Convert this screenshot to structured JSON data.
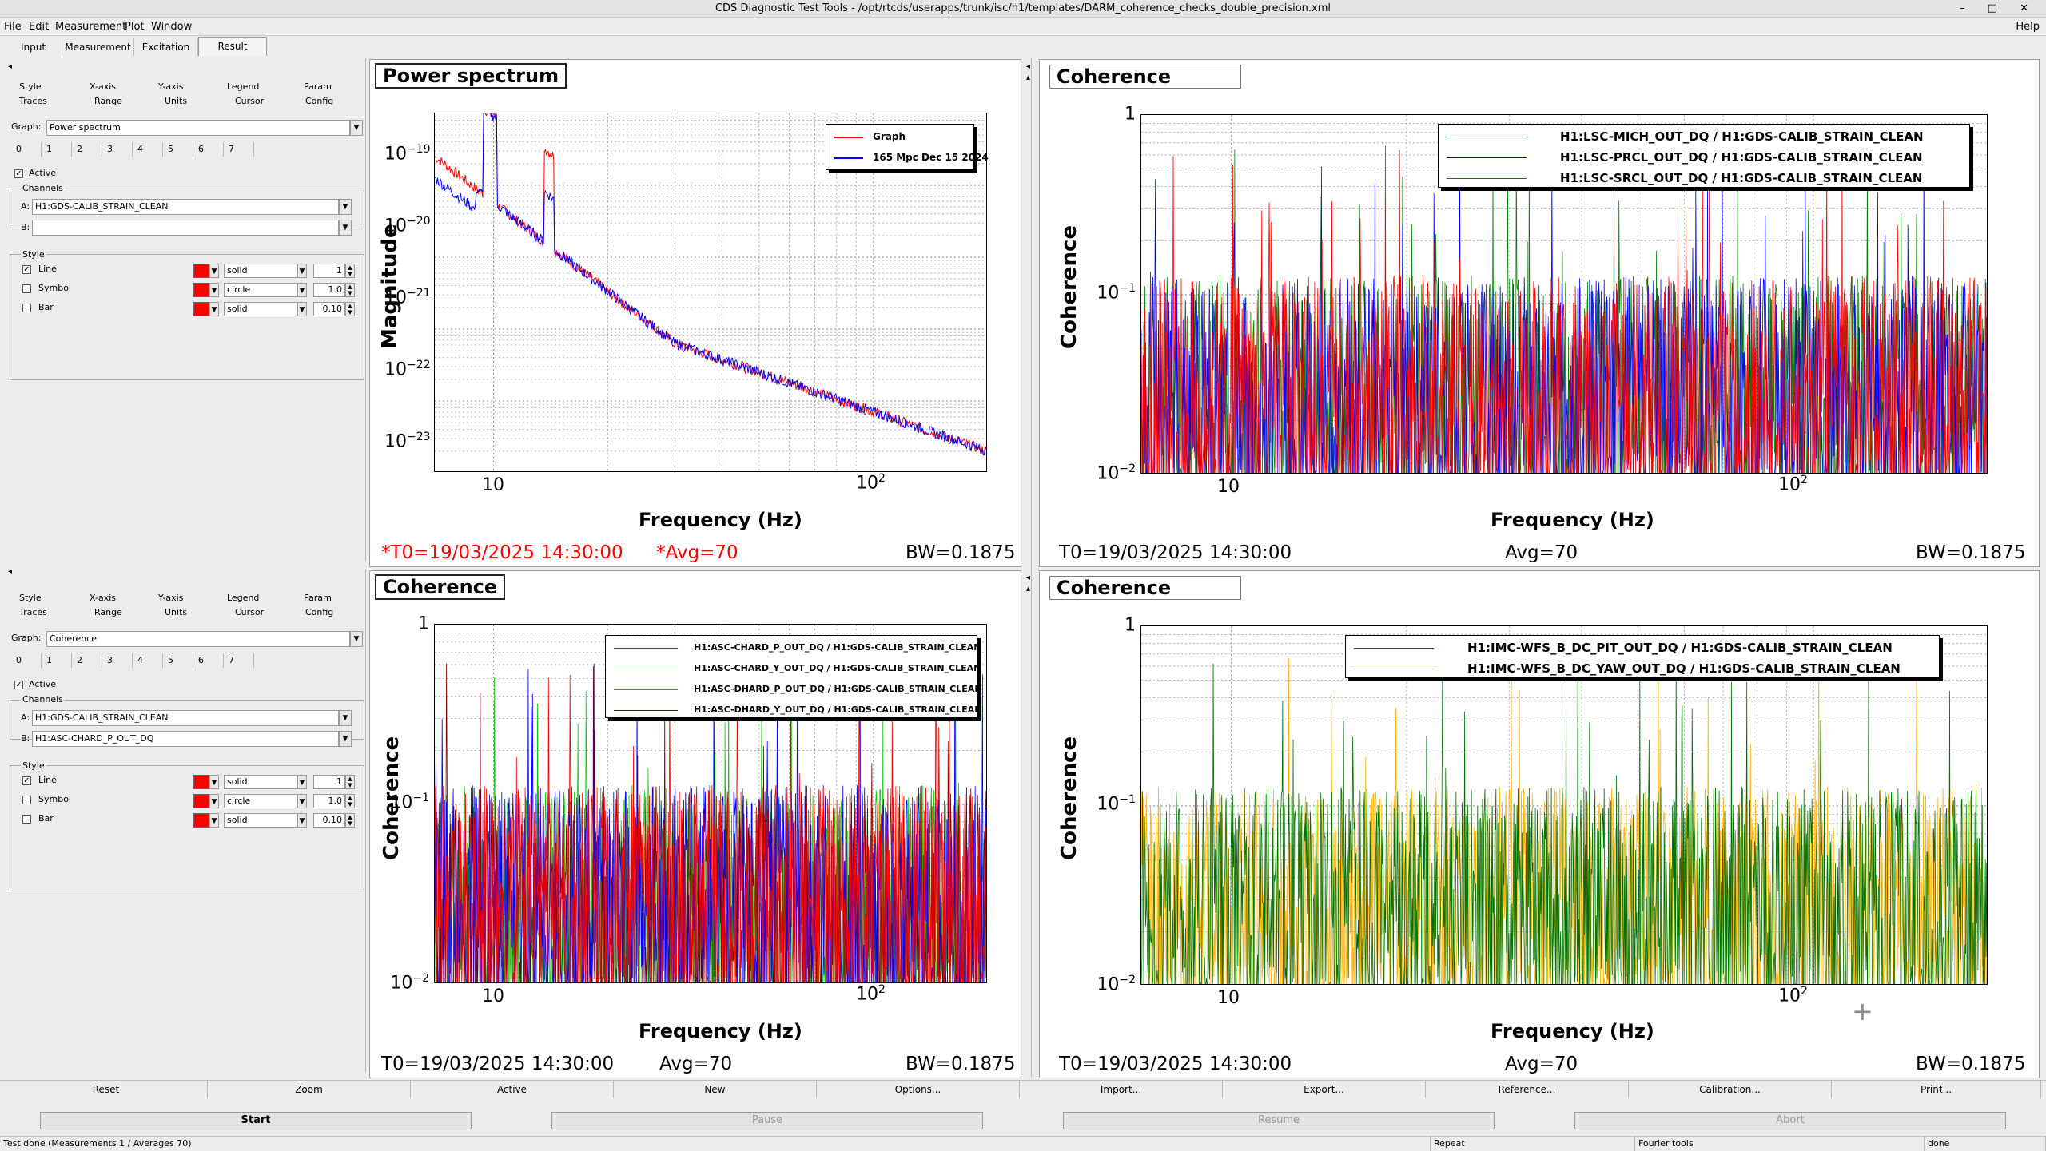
{
  "window": {
    "title": "CDS Diagnostic Test Tools - /opt/rtcds/userapps/trunk/isc/h1/templates/DARM_coherence_checks_double_precision.xml",
    "controls": "– □ ✕"
  },
  "menu": [
    "File",
    "Edit",
    "Measurement",
    "Plot",
    "Window"
  ],
  "help": "Help",
  "main_tabs": [
    "Input",
    "Measurement",
    "Excitation",
    "Result"
  ],
  "panel_tabs": {
    "row1": [
      "Style",
      "X-axis",
      "Y-axis",
      "Legend",
      "Param"
    ],
    "row2": [
      "Traces",
      "Range",
      "Units",
      "Cursor",
      "Config"
    ]
  },
  "trace_numbers": [
    "0",
    "1",
    "2",
    "3",
    "4",
    "5",
    "6",
    "7"
  ],
  "labels": {
    "graph": "Graph:",
    "active": "Active",
    "channels": "Channels",
    "a": "A:",
    "b": "B:",
    "style": "Style",
    "line": "Line",
    "symbol": "Symbol",
    "bar": "Bar"
  },
  "panels": [
    {
      "graph": "Power spectrum",
      "chan_a": "H1:GDS-CALIB_STRAIN_CLEAN",
      "chan_b": "",
      "line_style": "solid",
      "line_width": "1",
      "symbol": "circle",
      "symbol_size": "1.0",
      "bar": "solid",
      "bar_width": "0.10"
    },
    {
      "graph": "Coherence",
      "chan_a": "H1:GDS-CALIB_STRAIN_CLEAN",
      "chan_b": "H1:ASC-CHARD_P_OUT_DQ",
      "line_style": "solid",
      "line_width": "1",
      "symbol": "circle",
      "symbol_size": "1.0",
      "bar": "solid",
      "bar_width": "0.10"
    }
  ],
  "plots": [
    {
      "title": "Power spectrum",
      "ylabel": "Magnitude",
      "xlabel": "Frequency (Hz)",
      "t0": "*T0=19/03/2025 14:30:00",
      "avg": "*Avg=70",
      "bw": "BW=0.1875",
      "legend": [
        {
          "name": "Graph",
          "color": "#ff0000"
        },
        {
          "name": "165 Mpc Dec 15 2024",
          "color": "#0000ff"
        }
      ]
    },
    {
      "title": "Coherence",
      "ylabel": "Coherence",
      "xlabel": "Frequency (Hz)",
      "t0": "T0=19/03/2025 14:30:00",
      "avg": "Avg=70",
      "bw": "BW=0.1875",
      "legend": [
        {
          "name": "H1:LSC-MICH_OUT_DQ / H1:GDS-CALIB_STRAIN_CLEAN",
          "color": "#ff0000"
        },
        {
          "name": "H1:LSC-PRCL_OUT_DQ / H1:GDS-CALIB_STRAIN_CLEAN",
          "color": "#0000ff"
        },
        {
          "name": "H1:LSC-SRCL_OUT_DQ / H1:GDS-CALIB_STRAIN_CLEAN",
          "color": "#008000"
        }
      ]
    },
    {
      "title": "Coherence",
      "ylabel": "Coherence",
      "xlabel": "Frequency (Hz)",
      "t0": "T0=19/03/2025 14:30:00",
      "avg": "Avg=70",
      "bw": "BW=0.1875",
      "legend": [
        {
          "name": "H1:ASC-CHARD_P_OUT_DQ / H1:GDS-CALIB_STRAIN_CLEAN",
          "color": "#ff0000"
        },
        {
          "name": "H1:ASC-CHARD_Y_OUT_DQ / H1:GDS-CALIB_STRAIN_CLEAN",
          "color": "#0000ff"
        },
        {
          "name": "H1:ASC-DHARD_P_OUT_DQ / H1:GDS-CALIB_STRAIN_CLEAN",
          "color": "#00cc00"
        },
        {
          "name": "H1:ASC-DHARD_Y_OUT_DQ / H1:GDS-CALIB_STRAIN_CLEAN",
          "color": "#800000"
        }
      ]
    },
    {
      "title": "Coherence",
      "ylabel": "Coherence",
      "xlabel": "Frequency (Hz)",
      "t0": "T0=19/03/2025 14:30:00",
      "avg": "Avg=70",
      "bw": "BW=0.1875",
      "legend": [
        {
          "name": "H1:IMC-WFS_B_DC_PIT_OUT_DQ / H1:GDS-CALIB_STRAIN_CLEAN",
          "color": "#007000"
        },
        {
          "name": "H1:IMC-WFS_B_DC_YAW_OUT_DQ / H1:GDS-CALIB_STRAIN_CLEAN",
          "color": "#ffb000"
        }
      ]
    }
  ],
  "ticks": {
    "x10": "10",
    "x100": "10",
    "x100exp": "2",
    "ps_y": [
      {
        "b": "10",
        "e": "−19"
      },
      {
        "b": "10",
        "e": "−20"
      },
      {
        "b": "10",
        "e": "−21"
      },
      {
        "b": "10",
        "e": "−22"
      },
      {
        "b": "10",
        "e": "−23"
      }
    ],
    "coh_y": [
      {
        "b": "1",
        "e": ""
      },
      {
        "b": "10",
        "e": "−1"
      },
      {
        "b": "10",
        "e": "−2"
      }
    ]
  },
  "bottom_buttons": [
    "Reset",
    "Zoom",
    "Active",
    "New",
    "Options...",
    "Import...",
    "Export...",
    "Reference...",
    "Calibration...",
    "Print..."
  ],
  "run_buttons": [
    "Start",
    "Pause",
    "Resume",
    "Abort"
  ],
  "statusbar": [
    "Test done (Measurements 1 / Averages 70)",
    "Repeat",
    "Fourier tools",
    "done"
  ]
}
